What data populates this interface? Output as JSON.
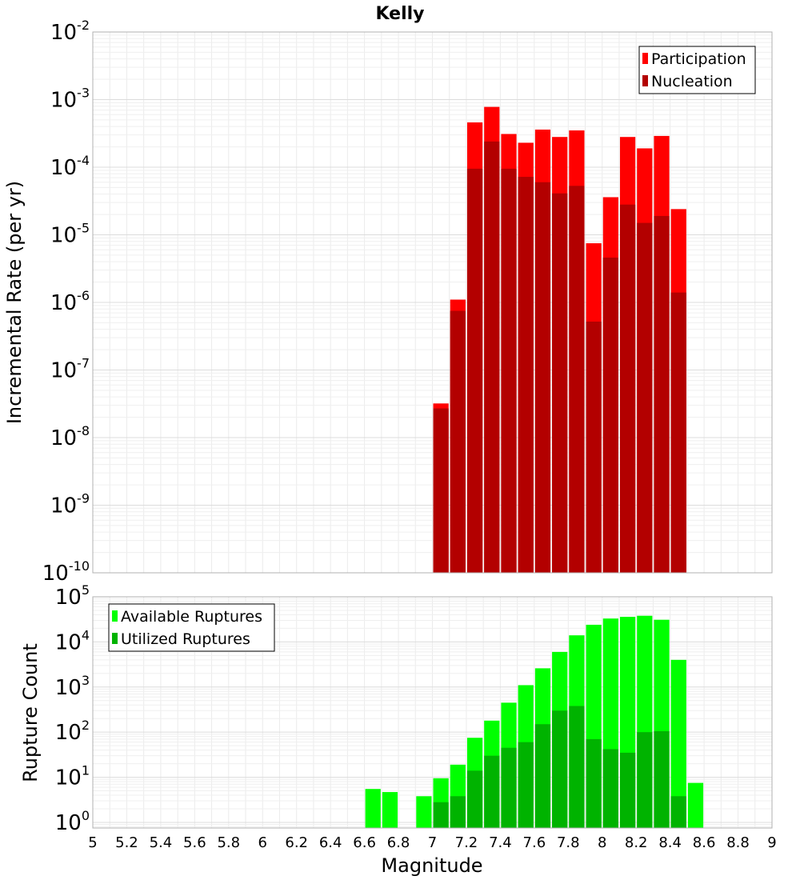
{
  "chart_data": [
    {
      "type": "bar",
      "title": "Kelly",
      "ylabel": "Incremental Rate (per yr)",
      "xlabel": "",
      "xlim": [
        5,
        9
      ],
      "ylim": [
        1e-10,
        0.01
      ],
      "yscale": "log",
      "yticks": [
        {
          "base": "10",
          "exp": "-2"
        },
        {
          "base": "10",
          "exp": "-3"
        },
        {
          "base": "10",
          "exp": "-4"
        },
        {
          "base": "10",
          "exp": "-5"
        },
        {
          "base": "10",
          "exp": "-6"
        },
        {
          "base": "10",
          "exp": "-7"
        },
        {
          "base": "10",
          "exp": "-8"
        },
        {
          "base": "10",
          "exp": "-9"
        },
        {
          "base": "10",
          "exp": "-10"
        }
      ],
      "grid": true,
      "legend_position": "top-right",
      "bar_width": 0.1,
      "series": [
        {
          "name": "Participation",
          "color": "#ff0000",
          "x": [
            7.0,
            7.1,
            7.2,
            7.3,
            7.4,
            7.5,
            7.6,
            7.7,
            7.8,
            7.9,
            8.0,
            8.1,
            8.2,
            8.3,
            8.4
          ],
          "values": [
            3.2e-08,
            1.1e-06,
            0.00046,
            0.00078,
            0.00031,
            0.00023,
            0.00036,
            0.00028,
            0.00035,
            7.5e-06,
            3.6e-05,
            0.00028,
            0.00019,
            0.00029,
            2.4e-05
          ]
        },
        {
          "name": "Nucleation",
          "color": "#b30000",
          "x": [
            7.0,
            7.1,
            7.2,
            7.3,
            7.4,
            7.5,
            7.6,
            7.7,
            7.8,
            7.9,
            8.0,
            8.1,
            8.2,
            8.3,
            8.4
          ],
          "values": [
            2.7e-08,
            7.5e-07,
            9.5e-05,
            0.00024,
            9.5e-05,
            7.2e-05,
            6e-05,
            4.1e-05,
            5.3e-05,
            5.2e-07,
            4.6e-06,
            2.8e-05,
            1.5e-05,
            1.9e-05,
            1.4e-06
          ]
        }
      ]
    },
    {
      "type": "bar",
      "title": "",
      "ylabel": "Rupture Count",
      "xlabel": "Magnitude",
      "xlim": [
        5,
        9
      ],
      "ylim": [
        0.75,
        100000
      ],
      "yscale": "log",
      "yticks": [
        {
          "value": 1,
          "base": "10",
          "exp": "0"
        },
        {
          "value": 10,
          "base": "10",
          "exp": "1"
        },
        {
          "value": 100,
          "base": "10",
          "exp": "2"
        },
        {
          "value": 1000,
          "base": "10",
          "exp": "3"
        },
        {
          "value": 10000,
          "base": "10",
          "exp": "4"
        },
        {
          "value": 100000,
          "base": "10",
          "exp": "5"
        }
      ],
      "xticks": [
        "5",
        "5.2",
        "5.4",
        "5.6",
        "5.8",
        "6",
        "6.2",
        "6.4",
        "6.6",
        "6.8",
        "7",
        "7.2",
        "7.4",
        "7.6",
        "7.8",
        "8",
        "8.2",
        "8.4",
        "8.6",
        "8.8",
        "9"
      ],
      "grid": true,
      "legend_position": "top-left",
      "bar_width": 0.1,
      "series": [
        {
          "name": "Available Ruptures",
          "color": "#00ff00",
          "x": [
            6.6,
            6.7,
            6.9,
            7.0,
            7.1,
            7.2,
            7.3,
            7.4,
            7.5,
            7.6,
            7.7,
            7.8,
            7.9,
            8.0,
            8.1,
            8.2,
            8.3,
            8.4,
            8.5
          ],
          "values": [
            5.5,
            4.7,
            3.8,
            9.5,
            19,
            75,
            180,
            450,
            1100,
            2600,
            6000,
            14000,
            24000,
            33000,
            36000,
            38000,
            31000,
            4000,
            7.5
          ]
        },
        {
          "name": "Utilized Ruptures",
          "color": "#00b300",
          "x": [
            7.0,
            7.1,
            7.2,
            7.3,
            7.4,
            7.5,
            7.6,
            7.7,
            7.8,
            7.9,
            8.0,
            8.1,
            8.2,
            8.3,
            8.4
          ],
          "values": [
            2.8,
            3.8,
            14,
            30,
            45,
            60,
            150,
            300,
            380,
            70,
            42,
            35,
            100,
            105,
            3.8
          ]
        }
      ]
    }
  ]
}
